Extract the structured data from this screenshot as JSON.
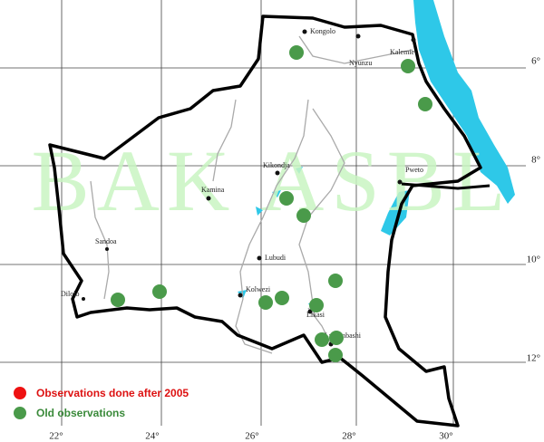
{
  "map": {
    "watermark": "BAK ASBL",
    "places": [
      "Kongolo",
      "Nyunzu",
      "Kalemie",
      "Kikondja",
      "Pweto",
      "Kamina",
      "Sandoa",
      "Lubudi",
      "Dilolo",
      "Kolwezi",
      "Likasi",
      "Lubumbashi"
    ],
    "longitude_labels": [
      "22°",
      "24°",
      "26°",
      "28°",
      "30°"
    ],
    "latitude_labels": [
      "6°",
      "8°",
      "10°",
      "12°"
    ]
  },
  "legend": {
    "items": [
      "Observations done after 2005",
      "Old observations"
    ]
  }
}
